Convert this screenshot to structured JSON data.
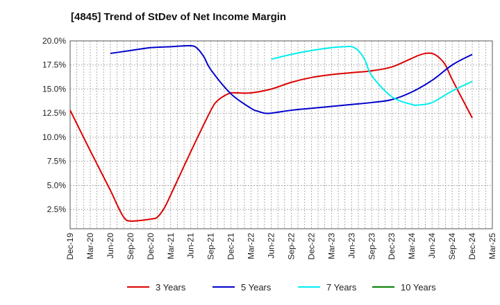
{
  "chart_data": {
    "type": "line",
    "title": "[4845]  Trend of StDev of Net Income Margin",
    "xlabel": "",
    "ylabel": "",
    "x_ticks": [
      "Dec-19",
      "Mar-20",
      "Jun-20",
      "Sep-20",
      "Dec-20",
      "Mar-21",
      "Jun-21",
      "Sep-21",
      "Dec-21",
      "Mar-22",
      "Jun-22",
      "Sep-22",
      "Dec-22",
      "Mar-23",
      "Jun-23",
      "Sep-23",
      "Dec-23",
      "Mar-24",
      "Jun-24",
      "Sep-24",
      "Dec-24",
      "Mar-25"
    ],
    "y_ticks": [
      "2.5%",
      "5.0%",
      "7.5%",
      "10.0%",
      "12.5%",
      "15.0%",
      "17.5%",
      "20.0%"
    ],
    "ylim": [
      0.5,
      20.0
    ],
    "grid": true,
    "legend_position": "bottom",
    "series": [
      {
        "name": "3 Years",
        "color": "#dd0000",
        "points": [
          [
            "Dec-19",
            12.8
          ],
          [
            "Mar-20",
            8.6
          ],
          [
            "Jun-20",
            4.5
          ],
          [
            "Jul-20",
            3.0
          ],
          [
            "Aug-20",
            1.7
          ],
          [
            "Sep-20",
            1.3
          ],
          [
            "Dec-20",
            1.5
          ],
          [
            "Jan-21",
            1.7
          ],
          [
            "Feb-21",
            2.6
          ],
          [
            "Mar-21",
            4.0
          ],
          [
            "Jun-21",
            8.5
          ],
          [
            "Sep-21",
            12.8
          ],
          [
            "Oct-21",
            13.8
          ],
          [
            "Nov-21",
            14.3
          ],
          [
            "Dec-21",
            14.6
          ],
          [
            "Jan-22",
            14.6
          ],
          [
            "Mar-22",
            14.6
          ],
          [
            "Jun-22",
            15.0
          ],
          [
            "Sep-22",
            15.7
          ],
          [
            "Dec-22",
            16.2
          ],
          [
            "Mar-23",
            16.5
          ],
          [
            "Jun-23",
            16.7
          ],
          [
            "Sep-23",
            16.9
          ],
          [
            "Dec-23",
            17.3
          ],
          [
            "Mar-24",
            18.2
          ],
          [
            "Apr-24",
            18.5
          ],
          [
            "May-24",
            18.7
          ],
          [
            "Jun-24",
            18.7
          ],
          [
            "Jul-24",
            18.3
          ],
          [
            "Aug-24",
            17.5
          ],
          [
            "Sep-24",
            16.0
          ],
          [
            "Dec-24",
            12.0
          ]
        ]
      },
      {
        "name": "5 Years",
        "color": "#0000cc",
        "points": [
          [
            "Jun-20",
            18.7
          ],
          [
            "Sep-20",
            19.0
          ],
          [
            "Dec-20",
            19.3
          ],
          [
            "Mar-21",
            19.4
          ],
          [
            "Jun-21",
            19.5
          ],
          [
            "Jul-21",
            19.2
          ],
          [
            "Aug-21",
            18.3
          ],
          [
            "Sep-21",
            17.0
          ],
          [
            "Dec-21",
            14.5
          ],
          [
            "Mar-22",
            13.0
          ],
          [
            "Apr-22",
            12.7
          ],
          [
            "May-22",
            12.5
          ],
          [
            "Jun-22",
            12.5
          ],
          [
            "Sep-22",
            12.8
          ],
          [
            "Dec-22",
            13.0
          ],
          [
            "Mar-23",
            13.2
          ],
          [
            "Jun-23",
            13.4
          ],
          [
            "Sep-23",
            13.6
          ],
          [
            "Dec-23",
            13.9
          ],
          [
            "Mar-24",
            14.7
          ],
          [
            "Jun-24",
            15.9
          ],
          [
            "Sep-24",
            17.5
          ],
          [
            "Dec-24",
            18.6
          ]
        ]
      },
      {
        "name": "7 Years",
        "color": "#00eeee",
        "points": [
          [
            "Jun-22",
            18.1
          ],
          [
            "Sep-22",
            18.6
          ],
          [
            "Dec-22",
            19.0
          ],
          [
            "Mar-23",
            19.3
          ],
          [
            "May-23",
            19.4
          ],
          [
            "Jun-23",
            19.4
          ],
          [
            "Jul-23",
            19.0
          ],
          [
            "Aug-23",
            18.0
          ],
          [
            "Sep-23",
            16.4
          ],
          [
            "Dec-23",
            14.2
          ],
          [
            "Mar-24",
            13.4
          ],
          [
            "Apr-24",
            13.35
          ],
          [
            "Jun-24",
            13.6
          ],
          [
            "Sep-24",
            14.8
          ],
          [
            "Dec-24",
            15.8
          ]
        ]
      },
      {
        "name": "10 Years",
        "color": "#008000",
        "points": []
      }
    ]
  }
}
